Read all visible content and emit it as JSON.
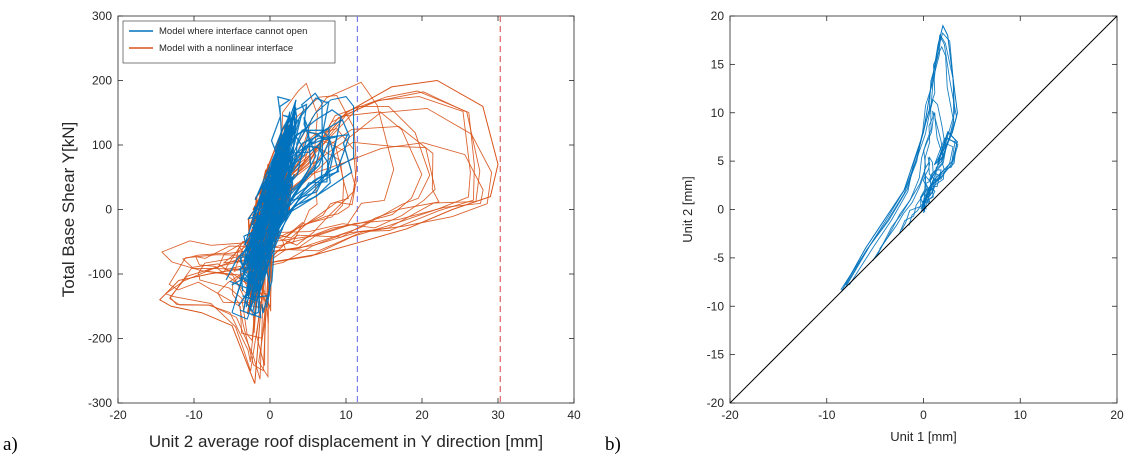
{
  "panel_labels": [
    "a)",
    "b)"
  ],
  "chart_data": [
    {
      "type": "line",
      "xlabel": "Unit 2 average roof displacement in Y direction [mm]",
      "ylabel": "Total Base Shear Y[kN]",
      "xlim": [
        -20,
        40
      ],
      "ylim": [
        -300,
        300
      ],
      "xticks": [
        -20,
        -10,
        0,
        10,
        20,
        30,
        40
      ],
      "yticks": [
        -300,
        -200,
        -100,
        0,
        100,
        200,
        300
      ],
      "legend_position": "top-left",
      "grid": false,
      "series": [
        {
          "name": "Model with a nonlinear interface",
          "color": "#d95319",
          "style": "hysteresis",
          "x": [
            0,
            5,
            10,
            16,
            22,
            28,
            30,
            29,
            24,
            18,
            12,
            6,
            1,
            -3,
            -8,
            -12,
            -14.5,
            -13,
            -9,
            -5,
            -3,
            -2,
            0
          ],
          "y": [
            20,
            80,
            150,
            190,
            200,
            160,
            70,
            20,
            0,
            -30,
            -50,
            -70,
            -80,
            -90,
            -100,
            -110,
            -140,
            -150,
            -160,
            -180,
            -240,
            -270,
            20
          ]
        },
        {
          "name": "Model where interface cannot open",
          "color": "#0072bd",
          "style": "hysteresis",
          "x": [
            -5,
            -4,
            -2,
            0,
            2,
            4,
            6,
            8,
            10,
            11,
            11,
            8,
            4,
            1,
            -1,
            -3,
            -5
          ],
          "y": [
            -160,
            -120,
            -60,
            0,
            60,
            110,
            150,
            170,
            175,
            160,
            80,
            60,
            20,
            -40,
            -100,
            -170,
            -160
          ]
        }
      ],
      "annotations": [
        {
          "type": "vline",
          "x": 11.5,
          "color": "#7b7bf0",
          "style": "dashed"
        },
        {
          "type": "vline",
          "x": 30.3,
          "color": "#e06060",
          "style": "dashed"
        }
      ]
    },
    {
      "type": "line",
      "xlabel": "Unit 1 [mm]",
      "ylabel": "Unit 2 [mm]",
      "xlim": [
        -20,
        20
      ],
      "ylim": [
        -20,
        20
      ],
      "xticks": [
        -20,
        -10,
        0,
        10,
        20
      ],
      "yticks": [
        -20,
        -15,
        -10,
        -5,
        0,
        5,
        10,
        15,
        20
      ],
      "grid": false,
      "series": [
        {
          "color": "#0072bd",
          "x": [
            -8.5,
            -6,
            -4,
            -2,
            -1,
            0,
            0.5,
            1,
            1.5,
            2,
            2.5,
            3,
            3.5,
            3,
            2,
            1.5,
            2.5,
            3.5,
            3,
            2,
            1,
            0.5,
            0
          ],
          "y": [
            -8.5,
            -4,
            -1,
            2,
            5,
            8,
            11,
            14,
            17,
            19,
            18,
            14,
            10,
            8,
            6,
            5,
            8,
            7,
            5,
            4,
            3,
            2,
            0
          ]
        },
        {
          "color": "#000000",
          "style": "reference",
          "x": [
            -20,
            20
          ],
          "y": [
            -20,
            20
          ]
        }
      ]
    }
  ]
}
